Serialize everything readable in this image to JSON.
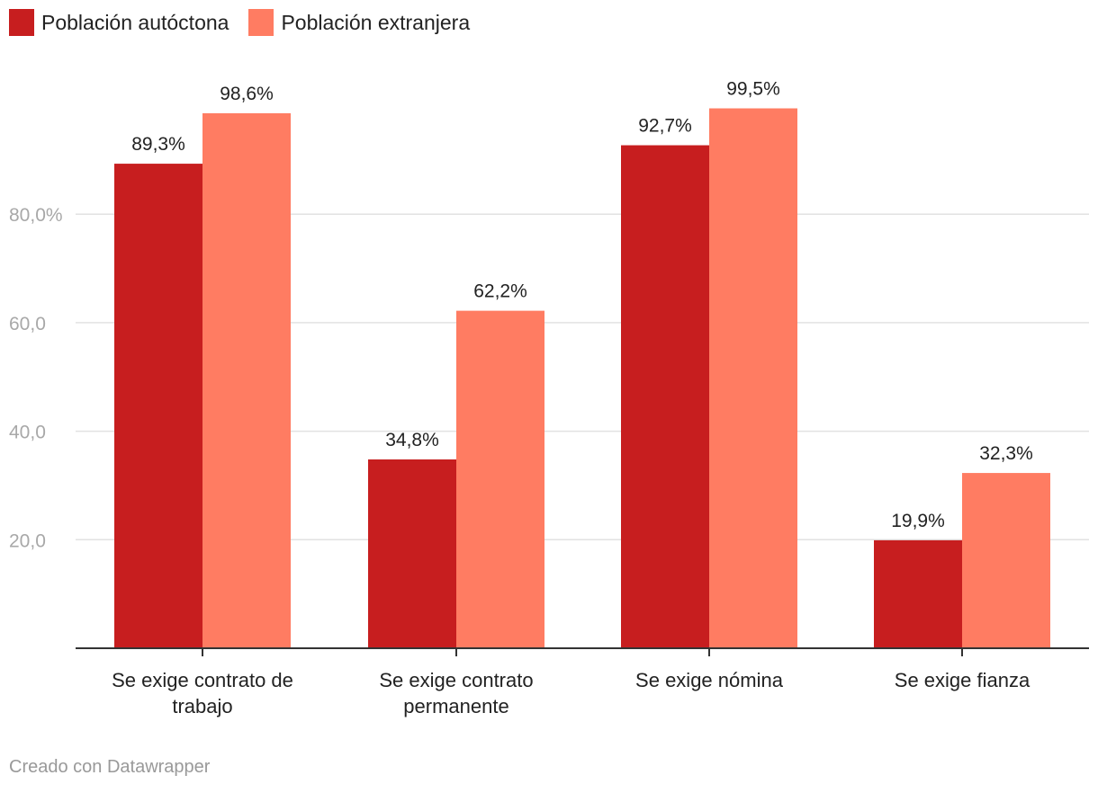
{
  "legend": [
    {
      "label": "Población autóctona",
      "color": "#c71e1f"
    },
    {
      "label": "Población extranjera",
      "color": "#ff7c62"
    }
  ],
  "footer": "Creado con Datawrapper",
  "chart_data": {
    "type": "bar",
    "categories": [
      [
        "Se exige contrato de",
        "trabajo"
      ],
      [
        "Se exige contrato",
        "permanente"
      ],
      [
        "Se exige nómina"
      ],
      [
        "Se exige fianza"
      ]
    ],
    "series": [
      {
        "name": "Población autóctona",
        "color": "#c71e1f",
        "values": [
          89.3,
          34.8,
          92.7,
          19.9
        ],
        "labels": [
          "89,3%",
          "34,8%",
          "92,7%",
          "19,9%"
        ]
      },
      {
        "name": "Población extranjera",
        "color": "#ff7c62",
        "values": [
          98.6,
          62.2,
          99.5,
          32.3
        ],
        "labels": [
          "98,6%",
          "62,2%",
          "99,5%",
          "32,3%"
        ]
      }
    ],
    "ylim": [
      0,
      100
    ],
    "yticks": [
      {
        "value": 20,
        "label": "20,0"
      },
      {
        "value": 40,
        "label": "40,0"
      },
      {
        "value": 60,
        "label": "60,0"
      },
      {
        "value": 80,
        "label": "80,0%"
      }
    ],
    "grid": true,
    "legend_position": "top-left"
  }
}
